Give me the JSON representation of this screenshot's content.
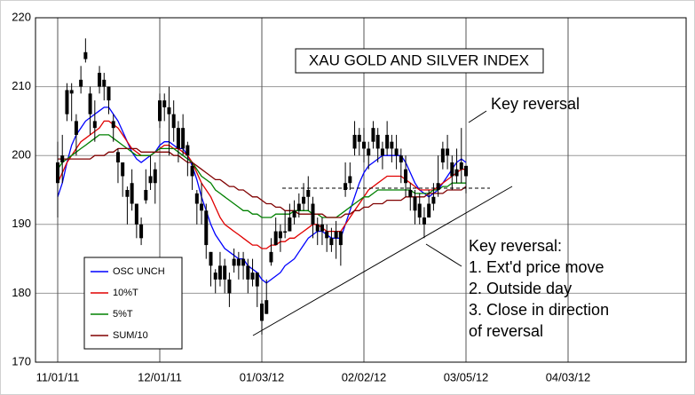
{
  "chart_data": {
    "type": "ohlc",
    "title": "XAU GOLD AND SILVER INDEX",
    "categories": [
      "11/01/11",
      null,
      null,
      null,
      null,
      null,
      null,
      null,
      null,
      null,
      null,
      null,
      null,
      null,
      null,
      null,
      null,
      null,
      null,
      null,
      null,
      null,
      "12/01/11",
      null,
      null,
      null,
      null,
      null,
      null,
      null,
      null,
      null,
      null,
      null,
      null,
      null,
      null,
      null,
      null,
      null,
      null,
      null,
      null,
      null,
      "01/03/12",
      null,
      null,
      null,
      null,
      null,
      null,
      null,
      null,
      null,
      null,
      null,
      null,
      null,
      null,
      null,
      null,
      null,
      null,
      null,
      null,
      null,
      "02/02/12",
      null,
      null,
      null,
      null,
      null,
      null,
      null,
      null,
      null,
      null,
      null,
      null,
      null,
      null,
      null,
      null,
      null,
      null,
      null,
      null,
      null,
      "03/05/12",
      null,
      null,
      null,
      null,
      null,
      null,
      null,
      null,
      null,
      null,
      null,
      null,
      null,
      null,
      null,
      null,
      null,
      null,
      null,
      null,
      null,
      "04/03/12"
    ],
    "ohlc": {
      "open": [
        196,
        199,
        206,
        209.5,
        205,
        210,
        214,
        209,
        204,
        210,
        211,
        210,
        205,
        200.5,
        199,
        195,
        193,
        193,
        190,
        193.5,
        196,
        198,
        205,
        208,
        207,
        206,
        204,
        201,
        201.5,
        198.5,
        194.5,
        193,
        192,
        186,
        183,
        182,
        184,
        182,
        184,
        185,
        185,
        184,
        182,
        183,
        178.5,
        177,
        184.5,
        187,
        189,
        189,
        189,
        191,
        192,
        193,
        195,
        193,
        190,
        190,
        189,
        188,
        188,
        189,
        195,
        196,
        201,
        203,
        202,
        200,
        202,
        203,
        201,
        201,
        202,
        201,
        200,
        198,
        195,
        194,
        193,
        191,
        191,
        193,
        195,
        199,
        201,
        199,
        197,
        199,
        198.5,
        null,
        null,
        null,
        null,
        null,
        null,
        null,
        null,
        null,
        null,
        null,
        null,
        null,
        null,
        null,
        null,
        null,
        null,
        null,
        null,
        null,
        null
      ],
      "high": [
        202,
        203,
        210.5,
        210.5,
        206,
        213,
        217,
        210,
        208,
        213,
        212,
        210,
        206,
        201,
        199,
        195.5,
        198,
        193,
        191,
        198,
        200,
        199,
        209,
        209,
        210,
        208,
        205,
        206,
        202,
        199,
        195,
        196,
        193,
        186,
        183.5,
        186,
        185,
        183,
        186.5,
        186,
        186,
        185,
        185,
        183,
        179,
        182,
        188,
        191,
        190,
        192,
        193,
        193.5,
        194.5,
        196,
        197,
        194,
        191,
        191,
        190,
        189.5,
        190.5,
        189,
        199,
        199,
        205,
        204,
        204,
        202,
        205,
        204,
        202,
        205,
        203,
        203,
        201,
        200,
        196,
        195,
        194.5,
        192.5,
        195,
        196,
        200,
        202,
        203,
        200,
        201,
        204,
        198.5,
        null,
        null,
        null,
        null,
        null,
        null,
        null,
        null,
        null,
        null,
        null,
        null,
        null,
        null,
        null,
        null,
        null,
        null,
        null,
        null,
        null,
        null
      ],
      "low": [
        191,
        196,
        205,
        205,
        200,
        209,
        213.5,
        203,
        202,
        209,
        208,
        206,
        202,
        196,
        194,
        190,
        192,
        188,
        187,
        193,
        195,
        193,
        204,
        205,
        200,
        202,
        199,
        200,
        197,
        195,
        190,
        190,
        185,
        181,
        180,
        181,
        180,
        178,
        183,
        182,
        182,
        180,
        181,
        178,
        174,
        177,
        184,
        187,
        186,
        188,
        189,
        190,
        191,
        192,
        192,
        188,
        187,
        187,
        186,
        186,
        185,
        184,
        194,
        195,
        200,
        200,
        199,
        198,
        201,
        199,
        198,
        200,
        199,
        198,
        196,
        194,
        192,
        190,
        190,
        188,
        191,
        192,
        194,
        198,
        198,
        195,
        196,
        196,
        194.5,
        null,
        null,
        null,
        null,
        null,
        null,
        null,
        null,
        null,
        null,
        null,
        null,
        null,
        null,
        null,
        null,
        null,
        null,
        null,
        null,
        null,
        null
      ],
      "close": [
        199,
        200,
        209.5,
        209,
        203,
        211,
        215,
        206,
        205,
        212,
        210,
        208,
        204,
        199,
        197,
        194,
        196,
        190,
        188,
        195,
        197,
        196,
        208,
        207,
        206,
        204,
        201,
        204,
        200,
        197,
        193,
        192,
        187,
        184,
        182,
        184,
        182,
        180,
        185,
        184,
        184,
        182,
        183,
        181,
        176,
        179,
        186,
        189,
        188,
        189,
        191,
        192,
        193,
        194,
        194,
        190,
        189,
        189,
        188,
        187,
        189,
        187,
        196,
        197,
        203,
        202,
        201,
        201,
        204,
        201,
        200,
        203,
        201,
        200,
        199,
        196,
        194,
        192,
        191,
        190,
        193,
        194,
        196,
        201,
        200,
        197,
        198,
        198,
        197,
        null,
        null,
        null,
        null,
        null,
        null,
        null,
        null,
        null,
        null,
        null,
        null,
        null,
        null,
        null,
        null,
        null,
        null,
        null,
        null,
        null,
        null
      ]
    },
    "series": [
      {
        "name": "OSC UNCH",
        "color": "#0000ff",
        "values": [
          194,
          196,
          199,
          201.5,
          203,
          204,
          205,
          205.5,
          206,
          206.5,
          207,
          207,
          206,
          205,
          203.5,
          202,
          200.5,
          199.5,
          199,
          199.5,
          200,
          200.5,
          201.5,
          202,
          202,
          201.5,
          201,
          201,
          200,
          198.5,
          196.5,
          194,
          192,
          190,
          188.5,
          187.5,
          186.5,
          186,
          185.5,
          185,
          185,
          184,
          183.5,
          183,
          182,
          181.5,
          182,
          182.5,
          183,
          184,
          184.5,
          185,
          186,
          187,
          188,
          188.5,
          189,
          189,
          188.5,
          188,
          188,
          188,
          190,
          192,
          194,
          196,
          197.5,
          198.5,
          199,
          199.5,
          200,
          200,
          200,
          200,
          200,
          199,
          197.5,
          196,
          195,
          194.5,
          194,
          194.5,
          195,
          196,
          197,
          198,
          199,
          199.5,
          199,
          null,
          null,
          null,
          null,
          null,
          null,
          null,
          null,
          null,
          null,
          null,
          null,
          null,
          null,
          null,
          null,
          null,
          null,
          null,
          null,
          null,
          null
        ]
      },
      {
        "name": "10%T",
        "color": "#e00000",
        "values": [
          196,
          197.5,
          199,
          200,
          201,
          202,
          202.5,
          203,
          203.5,
          204,
          205,
          205,
          204.5,
          204,
          203,
          202,
          201,
          200.5,
          200,
          200,
          200,
          200.5,
          201,
          201.5,
          201.5,
          201,
          201,
          200.5,
          200,
          199,
          197.5,
          196,
          195,
          194,
          192.5,
          191,
          190,
          189.5,
          189,
          188.5,
          188,
          187.5,
          187,
          187,
          186.5,
          186.5,
          187,
          187,
          187.5,
          187.5,
          188,
          188,
          188.5,
          189,
          189.5,
          190,
          190,
          189.5,
          189,
          189,
          189,
          189,
          190,
          191,
          192,
          193,
          194,
          195,
          195.5,
          196,
          196.5,
          197,
          197,
          197,
          197,
          196.5,
          196,
          195.5,
          195,
          195,
          195,
          195,
          195.5,
          196,
          196.5,
          197,
          197.5,
          198,
          198,
          null,
          null,
          null,
          null,
          null,
          null,
          null,
          null,
          null,
          null,
          null,
          null,
          null,
          null,
          null,
          null,
          null,
          null,
          null,
          null,
          null,
          null
        ]
      },
      {
        "name": "5%T",
        "color": "#008000",
        "values": [
          198,
          199,
          199.5,
          200,
          200.5,
          201,
          201.5,
          202,
          202.5,
          203,
          203,
          203,
          202.5,
          202,
          201.5,
          201,
          200.5,
          200,
          200,
          200,
          200,
          200.5,
          201,
          201,
          201,
          201,
          200.5,
          200,
          199.5,
          199,
          198,
          197,
          196.5,
          196,
          195,
          194.5,
          194,
          193.5,
          193,
          192.5,
          192,
          192,
          191.5,
          191.5,
          191,
          191,
          191,
          191.5,
          191.5,
          191.5,
          191.5,
          192,
          192,
          192,
          192,
          191.5,
          191.5,
          191,
          191,
          191,
          191,
          191.5,
          192,
          192.5,
          193,
          193.5,
          194,
          194,
          194.5,
          195,
          195,
          195,
          195,
          195,
          195,
          195,
          195,
          194.5,
          194.5,
          194.5,
          194.5,
          195,
          195,
          195.5,
          195.5,
          196,
          196,
          196,
          196,
          null,
          null,
          null,
          null,
          null,
          null,
          null,
          null,
          null,
          null,
          null,
          null,
          null,
          null,
          null,
          null,
          null,
          null,
          null,
          null,
          null,
          null
        ]
      },
      {
        "name": "SUM/10",
        "color": "#800000",
        "values": [
          199.5,
          199.5,
          199.5,
          199.5,
          199.5,
          199.5,
          199.5,
          199.5,
          200,
          200,
          200,
          200.5,
          200.5,
          201,
          201,
          201,
          201,
          201,
          200.5,
          200.5,
          200.5,
          200.5,
          200.5,
          200.5,
          200.5,
          200,
          200,
          199.5,
          199,
          199,
          198.5,
          198,
          197.5,
          197,
          196.5,
          196.5,
          196,
          195.5,
          195.5,
          195,
          195,
          194.5,
          194,
          194,
          193.5,
          193,
          193,
          192.5,
          192.5,
          192,
          192,
          192,
          191.5,
          191.5,
          191.5,
          191.5,
          191.5,
          191.5,
          191,
          191,
          191,
          191,
          191.5,
          191.5,
          192,
          192,
          192.5,
          192.5,
          193,
          193,
          193,
          193.5,
          193.5,
          193.5,
          193.5,
          194,
          194,
          194,
          194,
          194,
          194.5,
          194.5,
          194.5,
          194.5,
          195,
          195,
          195,
          195,
          195.5,
          null,
          null,
          null,
          null,
          null,
          null,
          null,
          null,
          null,
          null,
          null,
          null,
          null,
          null,
          null,
          null,
          null,
          null,
          null,
          null,
          null,
          null
        ]
      }
    ],
    "ylim": [
      170,
      220
    ],
    "yticks": [
      170,
      180,
      190,
      200,
      210,
      220
    ],
    "grid": true,
    "legend": "lower left",
    "annotations": [
      "Key reversal",
      "Key reversal:",
      "1. Ext'd price move",
      "2. Outside day",
      "3. Close in direction",
      "of reversal"
    ]
  }
}
